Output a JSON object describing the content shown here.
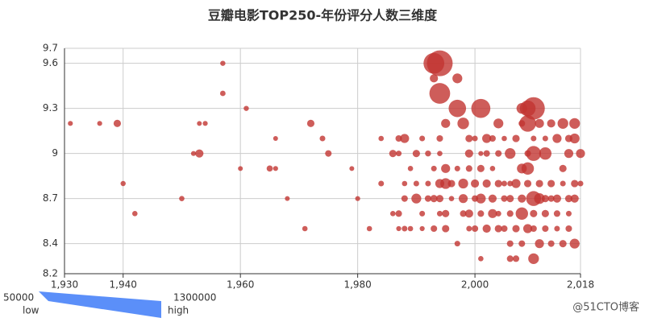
{
  "chart_data": {
    "type": "scatter",
    "title": "豆瓣电影TOP250-年份评分人数三维度",
    "color": "#c23531",
    "x": [
      1931,
      1936,
      1939,
      1940,
      1942,
      1950,
      1952,
      1953,
      1953,
      1957,
      1957,
      1954,
      1961,
      1960,
      1965,
      1966,
      1966,
      1968,
      1971,
      1972,
      1974,
      1975,
      1979,
      1980,
      1982,
      1984,
      1984,
      1986,
      1986,
      1987,
      1987,
      1987,
      1987,
      1988,
      1988,
      1988,
      1988,
      1989,
      1989,
      1990,
      1990,
      1990,
      1991,
      1991,
      1991,
      1992,
      1992,
      1992,
      1993,
      1993,
      1993,
      1993,
      1993,
      1994,
      1994,
      1994,
      1994,
      1994,
      1994,
      1994,
      1995,
      1995,
      1995,
      1995,
      1995,
      1996,
      1996,
      1997,
      1997,
      1997,
      1997,
      1998,
      1998,
      1998,
      1998,
      1999,
      1999,
      1999,
      1999,
      1999,
      2000,
      2000,
      2000,
      2000,
      2001,
      2001,
      2001,
      2001,
      2001,
      2001,
      2002,
      2002,
      2002,
      2002,
      2003,
      2003,
      2003,
      2003,
      2004,
      2004,
      2004,
      2004,
      2004,
      2005,
      2005,
      2005,
      2005,
      2006,
      2006,
      2006,
      2006,
      2006,
      2006,
      2007,
      2007,
      2007,
      2007,
      2008,
      2008,
      2008,
      2008,
      2008,
      2008,
      2009,
      2009,
      2009,
      2009,
      2009,
      2009,
      2010,
      2010,
      2010,
      2010,
      2010,
      2010,
      2010,
      2011,
      2011,
      2011,
      2011,
      2012,
      2012,
      2012,
      2012,
      2012,
      2013,
      2013,
      2013,
      2013,
      2014,
      2014,
      2014,
      2014,
      2015,
      2015,
      2015,
      2015,
      2016,
      2016,
      2016,
      2016,
      2016,
      2017,
      2017,
      2017,
      2017,
      2017,
      2018,
      2018
    ],
    "values": [
      9.2,
      9.2,
      9.2,
      8.8,
      8.6,
      8.7,
      9.0,
      9.0,
      9.2,
      9.6,
      9.4,
      9.2,
      9.3,
      8.9,
      8.9,
      8.9,
      9.1,
      8.7,
      8.5,
      9.2,
      9.1,
      9.0,
      8.9,
      8.7,
      8.5,
      9.1,
      8.8,
      9.0,
      8.6,
      9.1,
      8.6,
      8.5,
      9.0,
      9.1,
      8.7,
      8.8,
      8.5,
      8.5,
      8.9,
      9.0,
      8.7,
      8.8,
      9.1,
      8.6,
      8.5,
      9.0,
      8.7,
      8.8,
      9.6,
      8.5,
      9.5,
      8.9,
      8.7,
      9.6,
      9.4,
      9.1,
      8.8,
      8.6,
      9.0,
      8.7,
      9.2,
      8.9,
      8.8,
      8.6,
      8.5,
      8.8,
      8.7,
      9.5,
      9.3,
      8.4,
      8.9,
      9.2,
      8.8,
      8.7,
      8.6,
      9.1,
      9.0,
      8.9,
      8.5,
      8.6,
      9.1,
      8.8,
      8.7,
      8.5,
      9.3,
      8.7,
      8.9,
      8.6,
      8.3,
      9.0,
      9.1,
      8.8,
      9.0,
      8.5,
      9.1,
      8.7,
      8.6,
      8.9,
      9.2,
      8.8,
      8.5,
      8.6,
      9.0,
      8.7,
      8.5,
      9.1,
      8.8,
      9.0,
      8.7,
      8.4,
      8.6,
      8.3,
      8.8,
      9.1,
      8.8,
      8.5,
      8.3,
      9.3,
      8.9,
      8.6,
      8.7,
      8.4,
      9.2,
      9.3,
      9.2,
      8.9,
      8.5,
      8.8,
      9.0,
      9.3,
      9.0,
      8.7,
      8.3,
      8.6,
      8.5,
      9.1,
      9.2,
      8.7,
      8.4,
      8.8,
      9.0,
      8.6,
      8.5,
      8.7,
      9.1,
      9.2,
      8.8,
      8.4,
      8.7,
      9.1,
      8.7,
      8.6,
      8.5,
      9.2,
      8.9,
      8.4,
      8.8,
      9.0,
      8.7,
      8.5,
      8.6,
      9.1,
      9.2,
      9.1,
      8.8,
      8.4,
      8.7,
      9.0,
      8.8
    ],
    "sizes": [
      60000,
      60000,
      200000,
      70000,
      80000,
      80000,
      60000,
      250000,
      50000,
      70000,
      90000,
      60000,
      70000,
      50000,
      130000,
      60000,
      50000,
      50000,
      80000,
      200000,
      100000,
      150000,
      50000,
      60000,
      80000,
      80000,
      100000,
      200000,
      80000,
      150000,
      150000,
      60000,
      100000,
      300000,
      150000,
      80000,
      100000,
      80000,
      80000,
      200000,
      350000,
      100000,
      100000,
      100000,
      60000,
      120000,
      150000,
      100000,
      1000000,
      150000,
      250000,
      100000,
      200000,
      1300000,
      1000000,
      150000,
      300000,
      100000,
      80000,
      200000,
      300000,
      300000,
      400000,
      200000,
      200000,
      200000,
      80000,
      350000,
      800000,
      100000,
      100000,
      450000,
      350000,
      300000,
      150000,
      200000,
      250000,
      150000,
      100000,
      250000,
      100000,
      250000,
      150000,
      150000,
      900000,
      350000,
      200000,
      150000,
      80000,
      60000,
      300000,
      250000,
      150000,
      250000,
      150000,
      250000,
      300000,
      80000,
      350000,
      200000,
      200000,
      100000,
      150000,
      150000,
      150000,
      80000,
      100000,
      400000,
      200000,
      150000,
      150000,
      150000,
      100000,
      200000,
      300000,
      200000,
      150000,
      400000,
      350000,
      500000,
      250000,
      150000,
      150000,
      700000,
      750000,
      500000,
      300000,
      200000,
      150000,
      1100000,
      650000,
      650000,
      400000,
      200000,
      150000,
      100000,
      300000,
      400000,
      300000,
      200000,
      500000,
      200000,
      150000,
      200000,
      100000,
      250000,
      200000,
      150000,
      150000,
      300000,
      250000,
      150000,
      100000,
      400000,
      200000,
      200000,
      100000,
      300000,
      200000,
      150000,
      100000,
      200000,
      400000,
      350000,
      200000,
      350000,
      250000,
      300000,
      100000
    ],
    "xlim": [
      1930,
      2018
    ],
    "xticks": [
      {
        "value": 1930,
        "label": "1,930"
      },
      {
        "value": 1940,
        "label": "1,940"
      },
      {
        "value": 1960,
        "label": "1,960"
      },
      {
        "value": 1980,
        "label": "1,980"
      },
      {
        "value": 2000,
        "label": "2,000"
      },
      {
        "value": 2018,
        "label": "2,018"
      }
    ],
    "ylim": [
      8.2,
      9.7
    ],
    "yticks": [
      8.2,
      8.4,
      8.7,
      9,
      9.3,
      9.6,
      9.7
    ],
    "grid": true,
    "visual_map": {
      "min": 50000,
      "max": 1300000,
      "low_text": "low",
      "high_text": "high",
      "color": "#5b8ff9"
    }
  },
  "watermark": "@51CTO博客"
}
